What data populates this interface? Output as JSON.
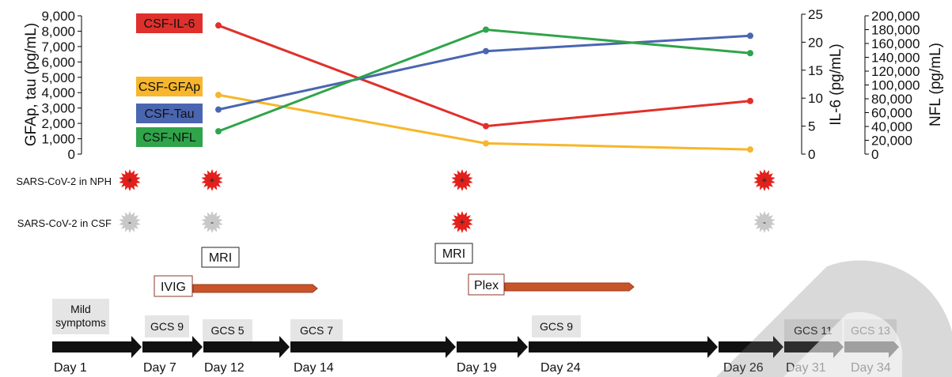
{
  "chart_data": {
    "type": "line",
    "axes": {
      "left": {
        "label": "GFAp, tau (pg/mL)",
        "range": [
          0,
          9000
        ],
        "ticks": [
          0,
          1000,
          2000,
          3000,
          4000,
          5000,
          6000,
          7000,
          8000,
          9000
        ],
        "tick_labels": [
          "0",
          "1,000",
          "2,000",
          "3,000",
          "4,000",
          "5,000",
          "6,000",
          "7,000",
          "8,000",
          "9,000"
        ]
      },
      "right_il6": {
        "label": "IL-6 (pg/mL)",
        "range": [
          0,
          25
        ],
        "ticks": [
          0,
          5,
          10,
          15,
          20,
          25
        ],
        "tick_labels": [
          "0",
          "5",
          "10",
          "15",
          "20",
          "25"
        ]
      },
      "right_nfl": {
        "label": "NFL (pg/mL)",
        "range": [
          0,
          200000
        ],
        "ticks": [
          0,
          20000,
          40000,
          60000,
          80000,
          100000,
          120000,
          140000,
          160000,
          180000,
          200000
        ],
        "tick_labels": [
          "0",
          "20,000",
          "40,000",
          "60,000",
          "80,000",
          "100,000",
          "120,000",
          "140,000",
          "160,000",
          "180,000",
          "200,000"
        ]
      }
    },
    "x": [
      "Day 12",
      "Day 19",
      "Day 34"
    ],
    "series": [
      {
        "name": "CSF-IL-6",
        "axis": "right_il6",
        "color": "#e0302b",
        "values": [
          23,
          5,
          9.5
        ]
      },
      {
        "name": "CSF-GFAp",
        "axis": "left",
        "color": "#f7b62b",
        "values": [
          3850,
          700,
          300
        ]
      },
      {
        "name": "CSF-Tau",
        "axis": "left",
        "color": "#4a66b0",
        "values": [
          2900,
          6700,
          7700
        ]
      },
      {
        "name": "CSF-NFL",
        "axis": "right_nfl",
        "color": "#2fa44a",
        "values": [
          33000,
          180000,
          146000
        ]
      }
    ],
    "grid": false,
    "legend_placement": "left"
  },
  "rows": {
    "npz_label": "SARS-CoV-2 in NPH",
    "csf_label": "SARS-CoV-2 in CSF",
    "positive_symbol": "+",
    "negative_symbol": "-",
    "npz_results": [
      "+",
      "+",
      "+",
      "+"
    ],
    "csf_results": [
      "-",
      "-",
      "+",
      "-"
    ],
    "positive_color": "#e3201b",
    "negative_color": "#c8c8c8"
  },
  "events": {
    "mri_labels": [
      "MRI",
      "MRI"
    ],
    "treatments": [
      {
        "label": "IVIG"
      },
      {
        "label": "Plex"
      }
    ],
    "treatment_bar_color": "#c9532a"
  },
  "timeline": {
    "status_labels": [
      "Mild symptoms",
      "GCS 9",
      "GCS 5",
      "GCS 7",
      "GCS 9",
      "GCS 11",
      "GCS 13"
    ],
    "days": [
      "Day 1",
      "Day 7",
      "Day 12",
      "Day 14",
      "Day 19",
      "Day 24",
      "Day 26",
      "Day 31",
      "Day 34"
    ],
    "arrow_color": "#111111"
  }
}
